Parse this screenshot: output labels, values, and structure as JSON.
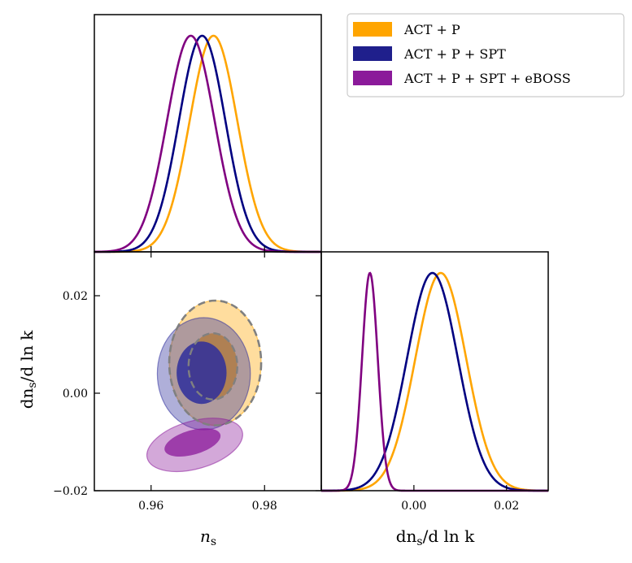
{
  "chart_data": {
    "type": "corner-plot",
    "parameters": [
      {
        "key": "ns",
        "label_base": "n",
        "label_sub": "s",
        "range": [
          0.95,
          0.99
        ],
        "ticks": [
          0.96,
          0.98
        ],
        "tick_labels": [
          "0.96",
          "0.98"
        ]
      },
      {
        "key": "running",
        "label_prefix": "dn",
        "label_sub": "s",
        "label_suffix": "/d ln k",
        "range": [
          -0.02,
          0.029
        ],
        "ticks": [
          -0.02,
          0.0,
          0.02
        ],
        "tick_labels": [
          "−0.02",
          "0.00",
          "0.02"
        ]
      }
    ],
    "legend": {
      "position": "top-right",
      "entries": [
        {
          "label": "ACT + P",
          "color": "#FFA500"
        },
        {
          "label": "ACT + P + SPT",
          "color": "#1F1F8C"
        },
        {
          "label": "ACT + P + SPT + eBOSS",
          "color": "#8B1A9A"
        }
      ]
    },
    "series": [
      {
        "name": "ACT + P",
        "line_color": "#FFA500",
        "fill_color": "#FFA500",
        "ns_mean": 0.971,
        "ns_sigma": 0.0042,
        "running_mean": 0.0058,
        "running_sigma": 0.0055,
        "contour_2sigma": {
          "center": [
            0.9713,
            0.0062
          ],
          "radii": [
            0.0081,
            0.0128
          ],
          "rotation_deg": 0
        },
        "contour_1sigma": {
          "center": [
            0.9709,
            0.0055
          ],
          "radii": [
            0.0043,
            0.0068
          ],
          "rotation_deg": 0
        },
        "dashed_outline": true
      },
      {
        "name": "ACT + P + SPT",
        "line_color": "#000080",
        "fill_color": "#2E2E9C",
        "ns_mean": 0.969,
        "ns_sigma": 0.0041,
        "running_mean": 0.004,
        "running_sigma": 0.0055,
        "contour_2sigma": {
          "center": [
            0.9693,
            0.004
          ],
          "radii": [
            0.0082,
            0.0115
          ],
          "rotation_deg": 0
        },
        "contour_1sigma": {
          "center": [
            0.9689,
            0.0042
          ],
          "radii": [
            0.0044,
            0.0064
          ],
          "rotation_deg": 0
        }
      },
      {
        "name": "ACT + P + SPT + eBOSS",
        "line_color": "#800080",
        "fill_color": "#8B1A9A",
        "ns_mean": 0.967,
        "ns_sigma": 0.0042,
        "running_mean": -0.0095,
        "running_sigma": 0.0017,
        "contour_2sigma": {
          "center": [
            0.9677,
            -0.0106
          ],
          "radii": [
            0.0087,
            0.0049
          ],
          "rotation_deg": -16
        },
        "contour_1sigma": {
          "center": [
            0.9673,
            -0.0101
          ],
          "radii": [
            0.0051,
            0.0025
          ],
          "rotation_deg": -16
        }
      }
    ]
  }
}
